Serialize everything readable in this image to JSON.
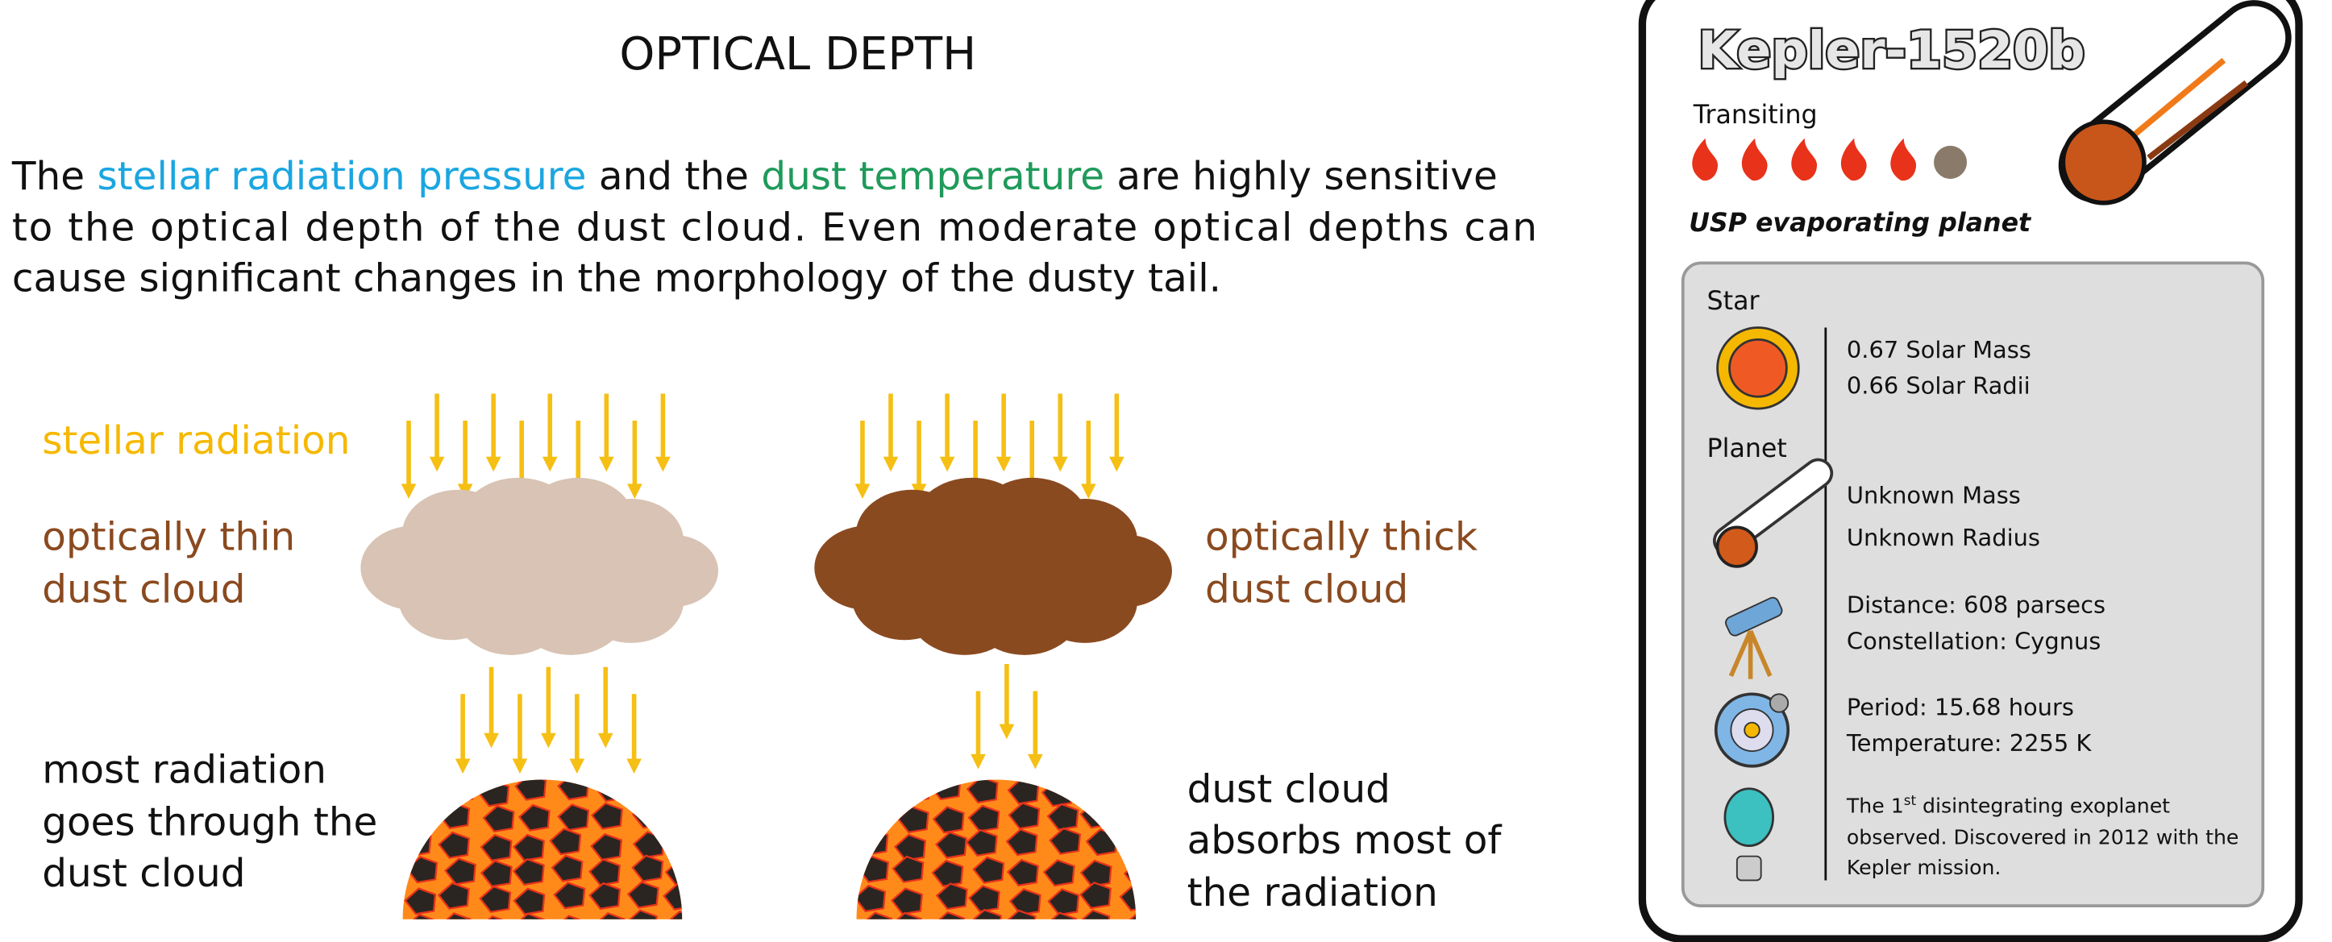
{
  "title": "OPTICAL DEPTH",
  "paragraph": {
    "lines": [
      [
        "The ",
        "stellar radiation pressure",
        " and the ",
        "dust temperature",
        " are highly sensitive"
      ],
      [
        "to the optical depth of the dust cloud. Even moderate optical depths can"
      ],
      [
        "cause significant changes in the morphology of the dusty tail."
      ]
    ]
  },
  "diagram": {
    "radiation_label": "stellar radiation",
    "thin_label": [
      "optically thin",
      "dust cloud"
    ],
    "thick_label": [
      "optically thick",
      "dust cloud"
    ],
    "thin_result": [
      "most radiation",
      "goes through the",
      "dust cloud"
    ],
    "thick_result": [
      "dust cloud",
      "absorbs most of",
      "the radiation"
    ]
  },
  "card": {
    "name": "Kepler-1520b",
    "method": "Transiting",
    "kind": "USP evaporating planet",
    "star_heading": "Star",
    "star": [
      "0.67 Solar Mass",
      "0.66 Solar Radii"
    ],
    "planet_heading": "Planet",
    "planet": [
      "Unknown Mass",
      "Unknown Radius"
    ],
    "location": [
      "Distance: 608 parsecs",
      "Constellation: Cygnus"
    ],
    "orbit": [
      "Period: 15.68 hours",
      "Temperature: 2255 K"
    ],
    "note": {
      "first": "The 1",
      "sup": "st",
      "rest": " disintegrating exoplanet",
      "line2": "observed. Discovered in 2012 with the",
      "line3": "Kepler mission."
    }
  }
}
